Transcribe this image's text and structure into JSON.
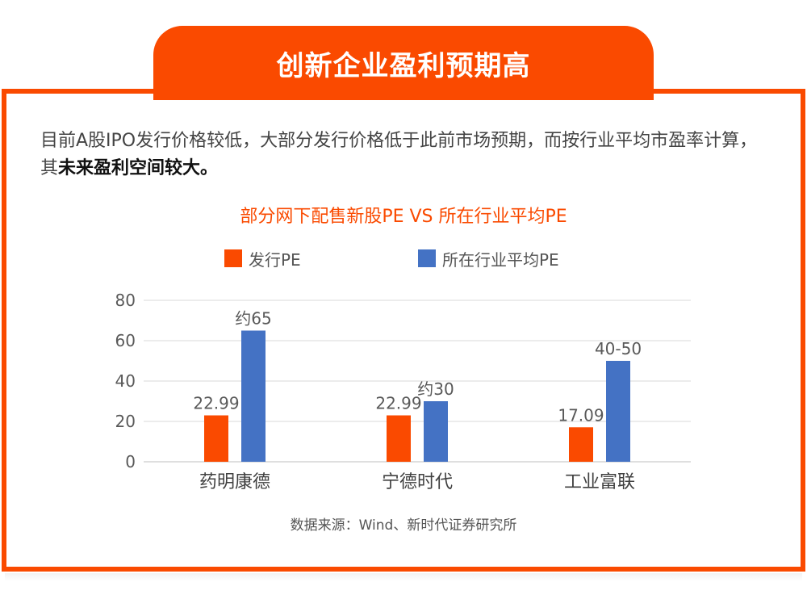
{
  "header": {
    "title": "创新企业盈利预期高"
  },
  "intro": {
    "text": "目前A股IPO发行价格较低，大部分发行价格低于此前市场预期，而按行业平均市盈率计算，其",
    "highlight": "未来盈利空间较大。"
  },
  "source": "数据来源：Wind、新时代证券研究所",
  "colors": {
    "accent": "#fa4a00",
    "series1": "#fa4a00",
    "series2": "#4472c4"
  },
  "chart_data": {
    "type": "bar",
    "title": "部分网下配售新股PE VS 所在行业平均PE",
    "xlabel": "",
    "ylabel": "",
    "ylim": [
      0,
      80
    ],
    "yticks": [
      0,
      20,
      40,
      60,
      80
    ],
    "grid": true,
    "legend": "top",
    "categories": [
      "药明康德",
      "宁德时代",
      "工业富联"
    ],
    "series": [
      {
        "name": "发行PE",
        "color": "#fa4a00",
        "values": [
          22.99,
          22.99,
          17.09
        ],
        "labels": [
          "22.99",
          "22.99",
          "17.09"
        ]
      },
      {
        "name": "所在行业平均PE",
        "color": "#4472c4",
        "values": [
          65,
          30,
          50
        ],
        "labels": [
          "约65",
          "约30",
          "40-50"
        ]
      }
    ]
  }
}
